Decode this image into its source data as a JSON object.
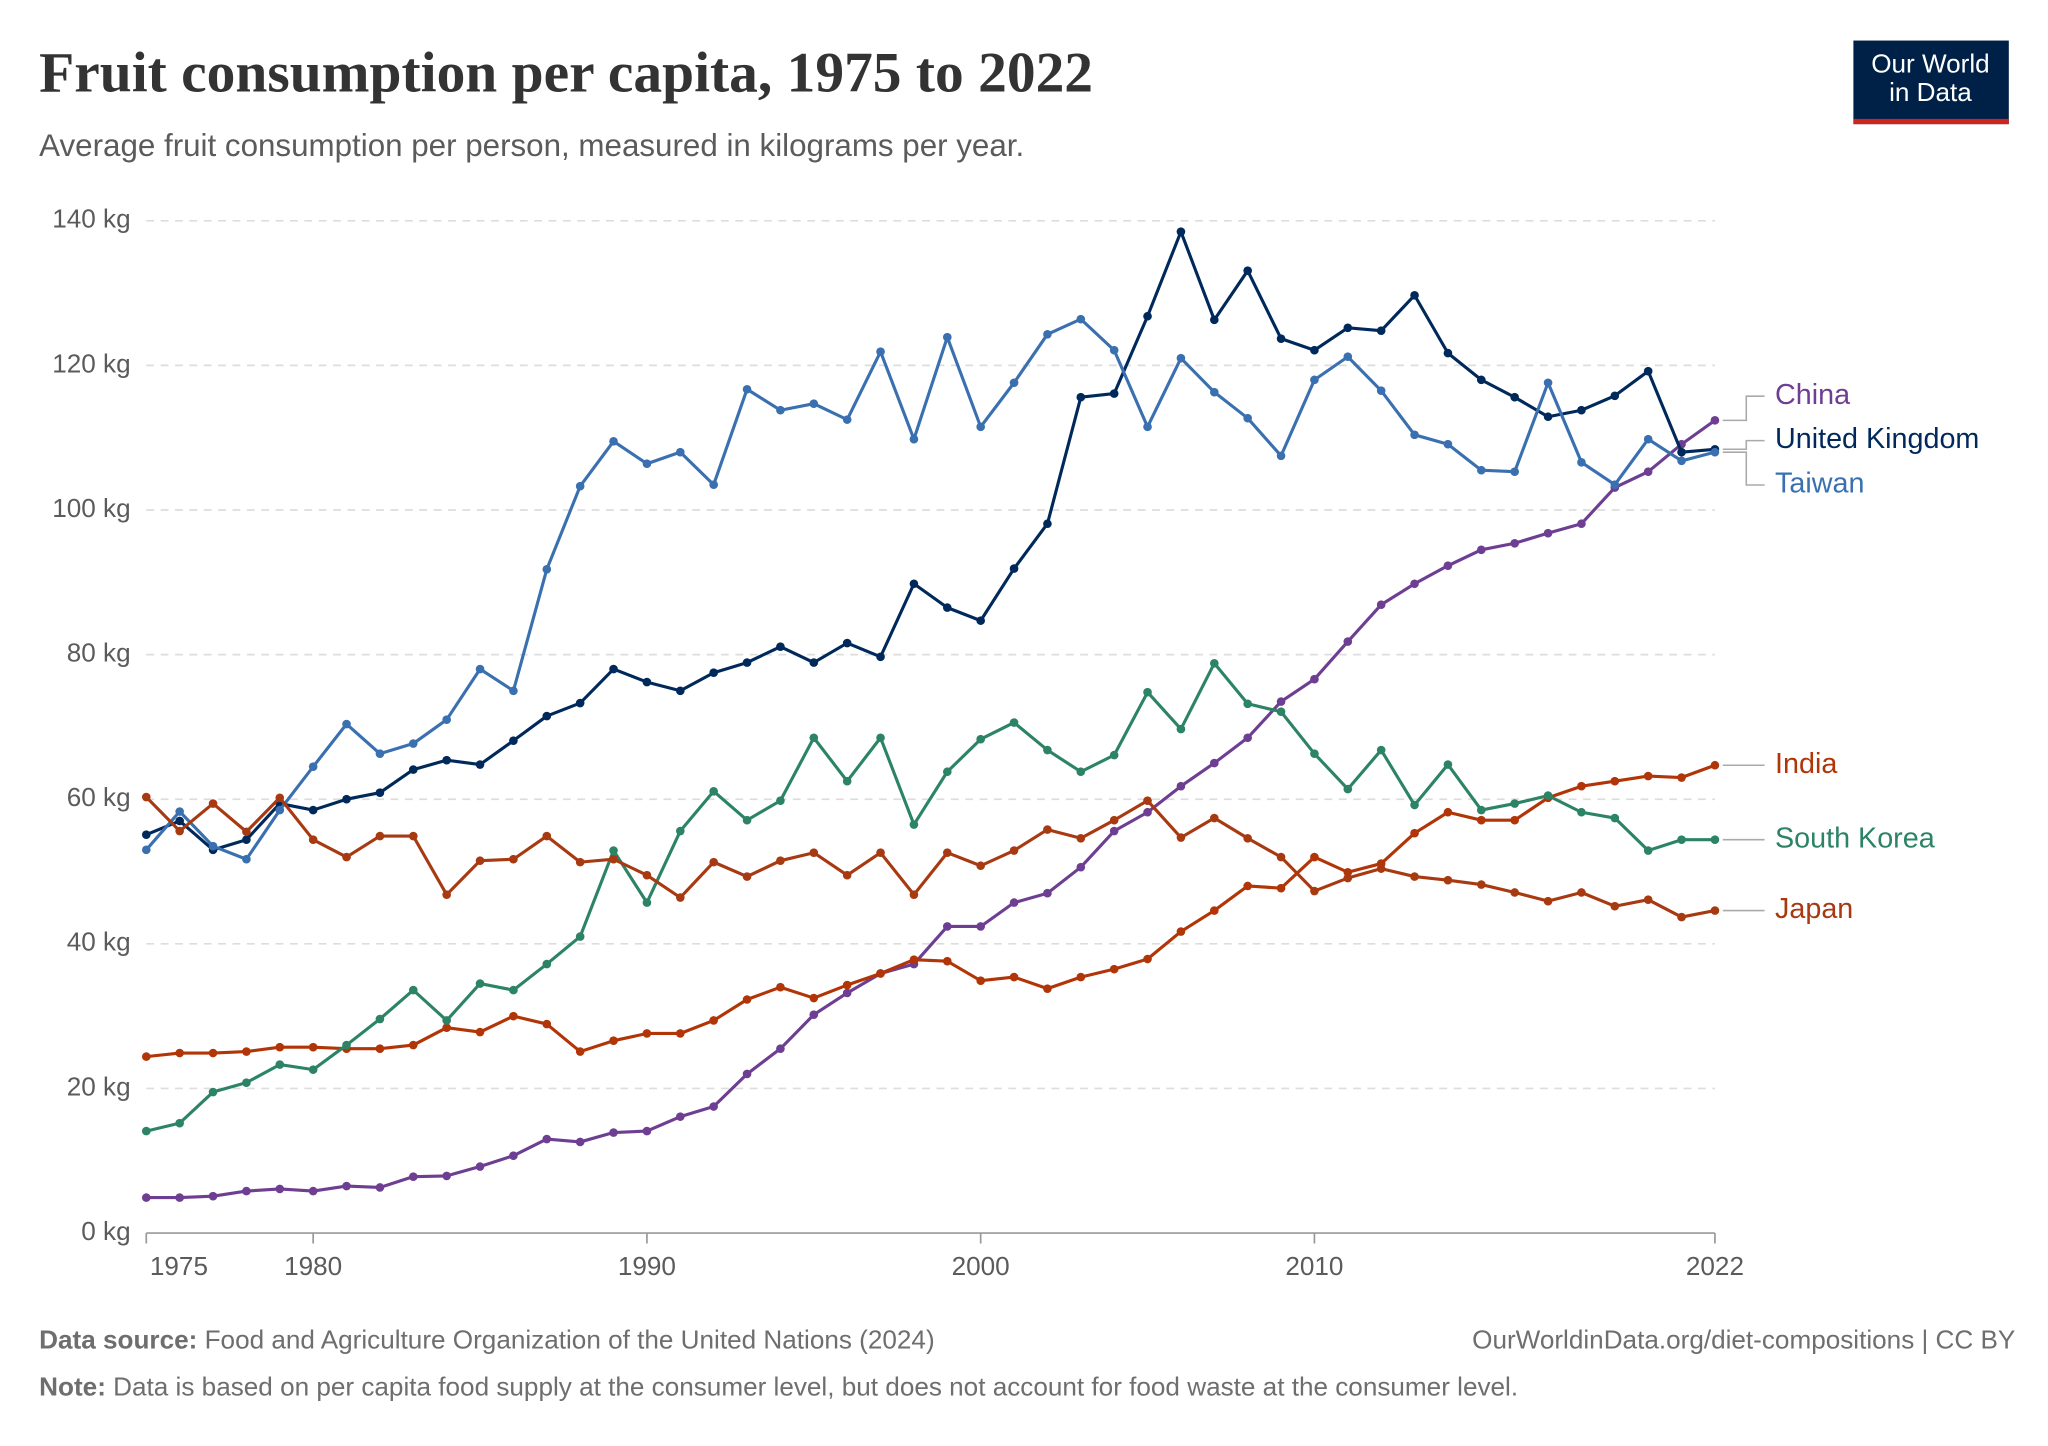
{
  "chart_data": {
    "type": "line",
    "title": "Fruit consumption per capita, 1975 to 2022",
    "subtitle": "Average fruit consumption per person, measured in kilograms per year.",
    "logo": [
      "Our World",
      "in Data"
    ],
    "source_label": "Data source:",
    "source": "Food and Agriculture Organization of the United Nations (2024)",
    "link": "OurWorldinData.org/diet-compositions | CC BY",
    "note_label": "Note:",
    "note": "Data is based on per capita food supply at the consumer level, but does not account for food waste at the consumer level.",
    "x": [
      1975,
      1976,
      1977,
      1978,
      1979,
      1980,
      1981,
      1982,
      1983,
      1984,
      1985,
      1986,
      1987,
      1988,
      1989,
      1990,
      1991,
      1992,
      1993,
      1994,
      1995,
      1996,
      1997,
      1998,
      1999,
      2000,
      2001,
      2002,
      2003,
      2004,
      2005,
      2006,
      2007,
      2008,
      2009,
      2010,
      2011,
      2012,
      2013,
      2014,
      2015,
      2016,
      2017,
      2018,
      2019,
      2020,
      2021,
      2022
    ],
    "xlim": [
      1975,
      2022
    ],
    "xticks": [
      1975,
      1980,
      1990,
      2000,
      2010,
      2022
    ],
    "ylim": [
      0,
      140
    ],
    "yticks": [
      {
        "value": 0,
        "label": "0 kg"
      },
      {
        "value": 20,
        "label": "20 kg"
      },
      {
        "value": 40,
        "label": "40 kg"
      },
      {
        "value": 60,
        "label": "60 kg"
      },
      {
        "value": 80,
        "label": "80 kg"
      },
      {
        "value": 100,
        "label": "100 kg"
      },
      {
        "value": 120,
        "label": "120 kg"
      },
      {
        "value": 140,
        "label": "140 kg"
      }
    ],
    "grid": true,
    "series": [
      {
        "name": "China",
        "color": "#6d3e91",
        "values": [
          4.9,
          4.9,
          5.1,
          5.8,
          6.1,
          5.8,
          6.5,
          6.3,
          7.8,
          7.9,
          9.2,
          10.7,
          13,
          12.6,
          13.9,
          14.1,
          16.1,
          17.5,
          22,
          25.5,
          30.2,
          33.2,
          35.9,
          37.2,
          42.4,
          42.4,
          45.7,
          47,
          50.6,
          55.6,
          58.2,
          61.8,
          65,
          68.5,
          73.5,
          76.6,
          81.8,
          86.9,
          89.8,
          92.3,
          94.5,
          95.4,
          96.8,
          98.1,
          103.1,
          105.3,
          109.1,
          112.4
        ]
      },
      {
        "name": "United Kingdom",
        "color": "#00295b",
        "values": [
          55.1,
          57,
          53,
          54.4,
          59.4,
          58.5,
          60,
          60.9,
          64.1,
          65.4,
          64.8,
          68.1,
          71.5,
          73.3,
          78,
          76.2,
          75,
          77.5,
          78.9,
          81.1,
          78.9,
          81.6,
          79.7,
          89.8,
          86.5,
          84.7,
          91.9,
          98.1,
          115.6,
          116.1,
          126.8,
          138.5,
          126.3,
          133.1,
          123.7,
          122.1,
          125.2,
          124.8,
          129.7,
          121.7,
          118,
          115.6,
          112.9,
          113.8,
          115.8,
          119.2,
          108,
          108.4
        ]
      },
      {
        "name": "Taiwan",
        "color": "#3a70b0",
        "values": [
          53,
          58.3,
          53.5,
          51.7,
          58.5,
          64.5,
          70.4,
          66.3,
          67.7,
          71,
          78,
          75,
          91.8,
          103.3,
          109.5,
          106.4,
          108,
          103.5,
          116.7,
          113.8,
          114.7,
          112.5,
          121.9,
          109.8,
          123.9,
          111.5,
          117.6,
          124.3,
          126.4,
          122.1,
          111.5,
          121,
          116.3,
          112.7,
          107.5,
          118,
          121.2,
          116.5,
          110.4,
          109.1,
          105.5,
          105.3,
          117.6,
          106.6,
          103.5,
          109.8,
          106.8,
          108
        ]
      },
      {
        "name": "India",
        "color": "#b13507",
        "values": [
          24.4,
          24.9,
          24.9,
          25.1,
          25.7,
          25.7,
          25.5,
          25.5,
          26,
          28.4,
          27.8,
          30,
          28.9,
          25.1,
          26.6,
          27.6,
          27.6,
          29.4,
          32.3,
          34,
          32.5,
          34.3,
          35.9,
          37.8,
          37.6,
          34.9,
          35.4,
          33.8,
          35.4,
          36.5,
          37.9,
          41.7,
          44.6,
          48,
          47.7,
          52,
          49.9,
          51.1,
          55.3,
          58.2,
          57.1,
          57.1,
          60.2,
          61.8,
          62.5,
          63.2,
          63,
          64.7
        ]
      },
      {
        "name": "South Korea",
        "color": "#2c8465",
        "values": [
          14.1,
          15.2,
          19.5,
          20.8,
          23.3,
          22.6,
          26,
          29.6,
          33.6,
          29.4,
          34.5,
          33.6,
          37.2,
          41,
          52.9,
          45.7,
          55.6,
          61.1,
          57.1,
          59.8,
          68.5,
          62.5,
          68.5,
          56.5,
          63.8,
          68.3,
          70.6,
          66.8,
          63.8,
          66.1,
          74.8,
          69.7,
          78.8,
          73.2,
          72.1,
          66.3,
          61.4,
          66.8,
          59.2,
          64.8,
          58.5,
          59.4,
          60.5,
          58.2,
          57.4,
          52.9,
          54.4,
          54.4
        ]
      },
      {
        "name": "Japan",
        "color": "#a83a12",
        "values": [
          60.3,
          55.6,
          59.4,
          55.5,
          60.2,
          54.4,
          52,
          54.9,
          54.9,
          46.8,
          51.5,
          51.7,
          54.9,
          51.3,
          51.7,
          49.5,
          46.4,
          51.3,
          49.3,
          51.5,
          52.6,
          49.5,
          52.6,
          46.8,
          52.6,
          50.8,
          52.9,
          55.8,
          54.6,
          57.1,
          59.8,
          54.7,
          57.4,
          54.6,
          52,
          47.3,
          49.1,
          50.4,
          49.3,
          48.8,
          48.2,
          47.1,
          45.9,
          47.1,
          45.2,
          46.1,
          43.7,
          44.6
        ]
      }
    ]
  }
}
